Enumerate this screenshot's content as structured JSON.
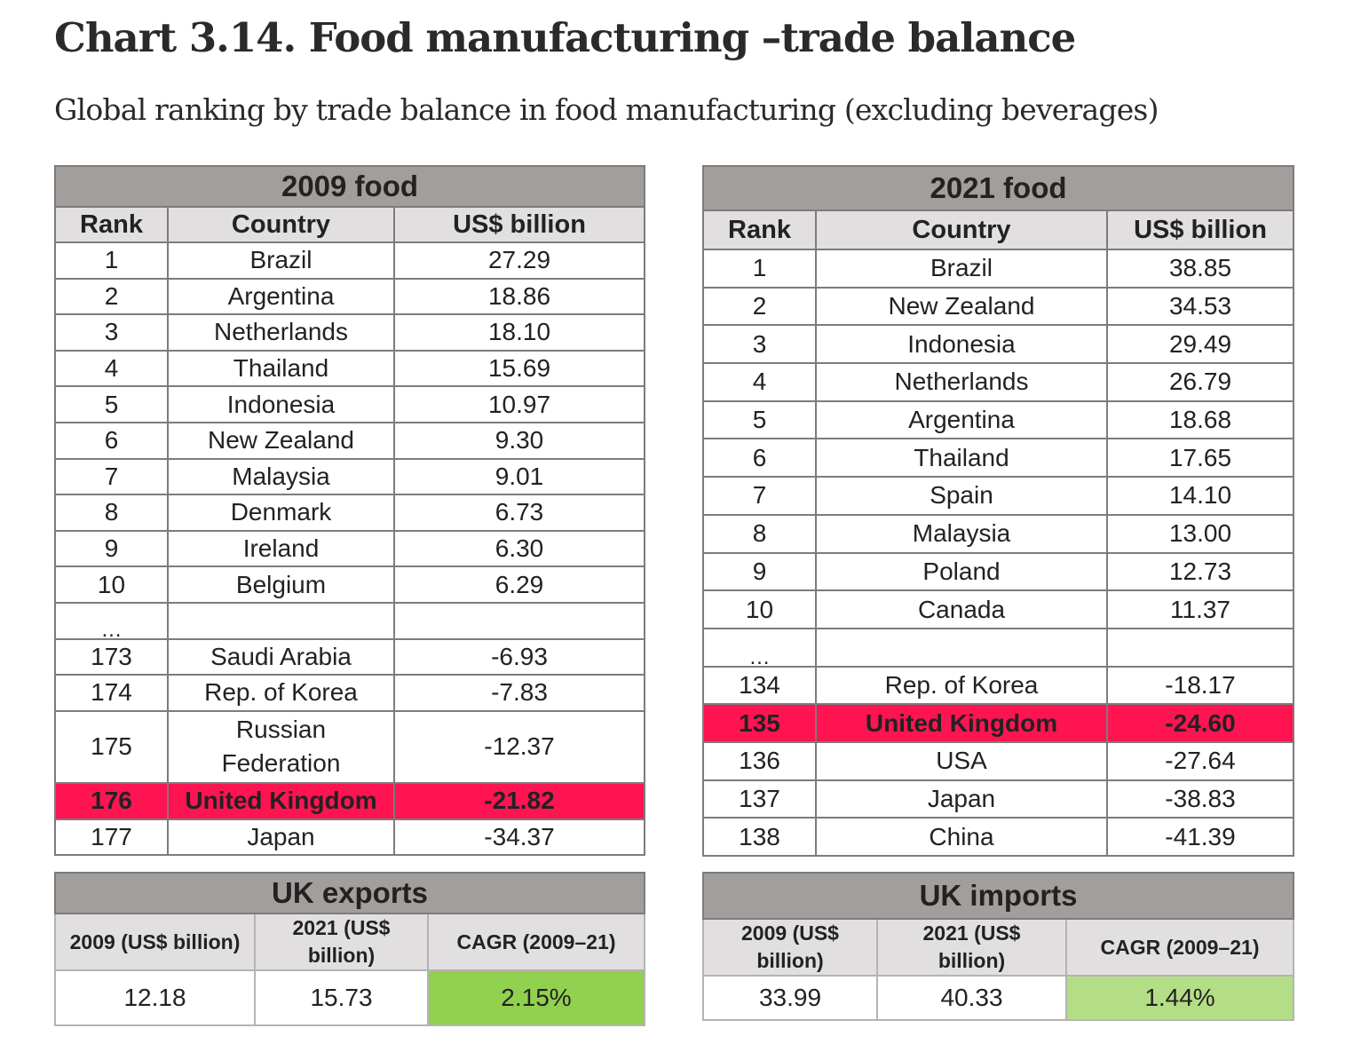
{
  "title": "Chart 3.14. Food manufacturing –trade balance",
  "subtitle": "Global ranking by trade balance in food manufacturing (excluding beverages)",
  "colors": {
    "highlight": "#ff1452",
    "header": "#a29e9c",
    "subheader": "#e1dfe0",
    "cagr_exports": "#92d050",
    "cagr_imports": "#b4de85"
  },
  "table_2009": {
    "caption": "2009 food",
    "columns": [
      "Rank",
      "Country",
      "US$ billion"
    ],
    "rows": [
      {
        "rank": "1",
        "country": "Brazil",
        "value": "27.29"
      },
      {
        "rank": "2",
        "country": "Argentina",
        "value": "18.86"
      },
      {
        "rank": "3",
        "country": "Netherlands",
        "value": "18.10"
      },
      {
        "rank": "4",
        "country": "Thailand",
        "value": "15.69"
      },
      {
        "rank": "5",
        "country": "Indonesia",
        "value": "10.97"
      },
      {
        "rank": "6",
        "country": "New Zealand",
        "value": "9.30"
      },
      {
        "rank": "7",
        "country": "Malaysia",
        "value": "9.01"
      },
      {
        "rank": "8",
        "country": "Denmark",
        "value": "6.73"
      },
      {
        "rank": "9",
        "country": "Ireland",
        "value": "6.30"
      },
      {
        "rank": "10",
        "country": "Belgium",
        "value": "6.29"
      },
      {
        "rank": "…",
        "country": "",
        "value": ""
      },
      {
        "rank": "173",
        "country": "Saudi Arabia",
        "value": "-6.93"
      },
      {
        "rank": "174",
        "country": "Rep. of Korea",
        "value": "-7.83"
      },
      {
        "rank": "175",
        "country": "Russian Federation",
        "value": "-12.37"
      },
      {
        "rank": "176",
        "country": "United Kingdom",
        "value": "-21.82"
      },
      {
        "rank": "177",
        "country": "Japan",
        "value": "-34.37"
      }
    ]
  },
  "table_2021": {
    "caption": "2021 food",
    "columns": [
      "Rank",
      "Country",
      "US$ billion"
    ],
    "rows": [
      {
        "rank": "1",
        "country": "Brazil",
        "value": "38.85"
      },
      {
        "rank": "2",
        "country": "New Zealand",
        "value": "34.53"
      },
      {
        "rank": "3",
        "country": "Indonesia",
        "value": "29.49"
      },
      {
        "rank": "4",
        "country": "Netherlands",
        "value": "26.79"
      },
      {
        "rank": "5",
        "country": "Argentina",
        "value": "18.68"
      },
      {
        "rank": "6",
        "country": "Thailand",
        "value": "17.65"
      },
      {
        "rank": "7",
        "country": "Spain",
        "value": "14.10"
      },
      {
        "rank": "8",
        "country": "Malaysia",
        "value": "13.00"
      },
      {
        "rank": "9",
        "country": "Poland",
        "value": "12.73"
      },
      {
        "rank": "10",
        "country": "Canada",
        "value": "11.37"
      },
      {
        "rank": "…",
        "country": "",
        "value": ""
      },
      {
        "rank": "134",
        "country": "Rep. of Korea",
        "value": "-18.17"
      },
      {
        "rank": "135",
        "country": "United Kingdom",
        "value": "-24.60"
      },
      {
        "rank": "136",
        "country": "USA",
        "value": "-27.64"
      },
      {
        "rank": "137",
        "country": "Japan",
        "value": "-38.83"
      },
      {
        "rank": "138",
        "country": "China",
        "value": "-41.39"
      }
    ]
  },
  "uk_exports": {
    "caption": "UK exports",
    "columns": [
      "2009 (US$ billion)",
      "2021 (US$ billion)",
      "CAGR (2009–21)"
    ],
    "values": [
      "12.18",
      "15.73",
      "2.15%"
    ]
  },
  "uk_imports": {
    "caption": "UK imports",
    "columns": [
      "2009 (US$ billion)",
      "2021 (US$ billion)",
      "CAGR (2009–21)"
    ],
    "values": [
      "33.99",
      "40.33",
      "1.44%"
    ]
  }
}
